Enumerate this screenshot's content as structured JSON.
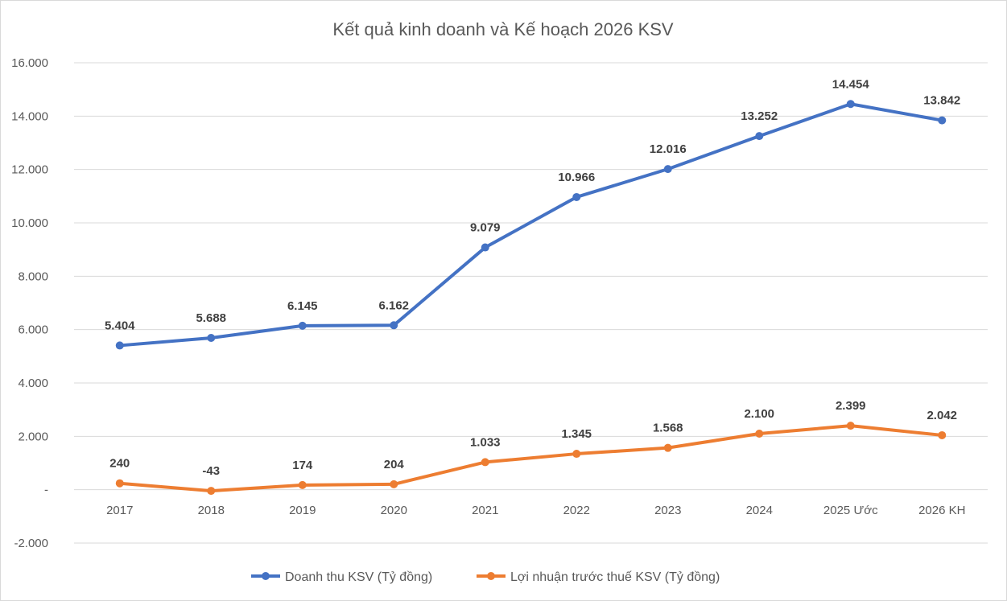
{
  "chart_data": {
    "type": "line",
    "title": "Kết quả kinh doanh và Kế hoạch 2026 KSV",
    "categories": [
      "2017",
      "2018",
      "2019",
      "2020",
      "2021",
      "2022",
      "2023",
      "2024",
      "2025 Ước",
      "2026 KH"
    ],
    "ylim": [
      -2000,
      16000
    ],
    "yticks": [
      16000,
      14000,
      12000,
      10000,
      8000,
      6000,
      4000,
      2000,
      0,
      -2000
    ],
    "ytick_labels": [
      "16.000",
      "14.000",
      "12.000",
      "10.000",
      "8.000",
      "6.000",
      "4.000",
      "2.000",
      "-",
      "-2.000"
    ],
    "grid": true,
    "legend": "bottom",
    "series": [
      {
        "name": "Doanh thu KSV (Tỷ đồng)",
        "color": "#4472C4",
        "values": [
          5404,
          5688,
          6145,
          6162,
          9079,
          10966,
          12016,
          13252,
          14454,
          13842
        ],
        "labels": [
          "5.404",
          "5.688",
          "6.145",
          "6.162",
          "9.079",
          "10.966",
          "12.016",
          "13.252",
          "14.454",
          "13.842"
        ]
      },
      {
        "name": "Lợi nhuận trước thuế KSV (Tỷ đồng)",
        "color": "#ED7D31",
        "values": [
          240,
          -43,
          174,
          204,
          1033,
          1345,
          1568,
          2100,
          2399,
          2042
        ],
        "labels": [
          "240",
          "-43",
          "174",
          "204",
          "1.033",
          "1.345",
          "1.568",
          "2.100",
          "2.399",
          "2.042"
        ]
      }
    ]
  }
}
